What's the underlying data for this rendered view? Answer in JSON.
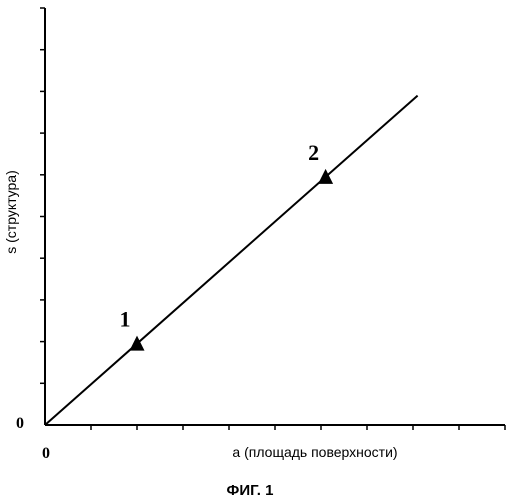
{
  "chart_data": {
    "type": "line",
    "xlabel": "a (площадь поверхности)",
    "ylabel": "s (структура)",
    "x_tick_label": "0",
    "y_tick_label": "0",
    "xlim": [
      0,
      10
    ],
    "ylim": [
      0,
      10
    ],
    "x_minor_ticks": 10,
    "y_minor_ticks": 10,
    "grid": false,
    "series": [
      {
        "x": [
          0,
          8.1
        ],
        "y": [
          0,
          7.9
        ],
        "color": "#000000"
      }
    ],
    "points": [
      {
        "label": "1",
        "x": 2.0,
        "y": 1.95,
        "marker": "triangle"
      },
      {
        "label": "2",
        "x": 6.1,
        "y": 5.95,
        "marker": "triangle"
      }
    ]
  },
  "caption": "ФИГ. 1"
}
